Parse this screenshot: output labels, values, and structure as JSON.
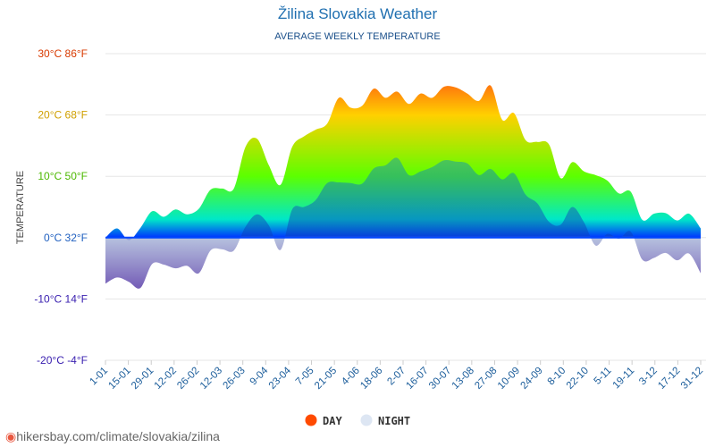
{
  "header": {
    "title": "Žilina Slovakia Weather",
    "subtitle": "AVERAGE WEEKLY TEMPERATURE"
  },
  "footer": {
    "source": "hikersbay.com/climate/slovakia/zilina"
  },
  "colors": {
    "day_legend": "#ff4a00",
    "night_legend": "#dde6f3",
    "gradient_hot": "#ff1a1a",
    "gradient_warm": "#ffd000",
    "gradient_mild": "#5cff00",
    "gradient_cool": "#00e8c8",
    "gradient_zero": "#0033ff",
    "gradient_cold": "#7030a0"
  },
  "chart_data": {
    "type": "area",
    "title": "Žilina Slovakia Weather",
    "subtitle": "AVERAGE WEEKLY TEMPERATURE",
    "ylabel": "TEMPERATURE",
    "ylim": [
      -20,
      30
    ],
    "y_ticks": [
      {
        "value": 30,
        "label": "30°C 86°F",
        "color": "#d83a00"
      },
      {
        "value": 20,
        "label": "20°C 68°F",
        "color": "#d0a000"
      },
      {
        "value": 10,
        "label": "10°C 50°F",
        "color": "#4cb800"
      },
      {
        "value": 0,
        "label": "0°C 32°F",
        "color": "#2060c0"
      },
      {
        "value": -10,
        "label": "-10°C 14°F",
        "color": "#3a20b0"
      },
      {
        "value": -20,
        "label": "-20°C -4°F",
        "color": "#3a20b0"
      }
    ],
    "x_ticks": [
      "1-01",
      "15-01",
      "29-01",
      "12-02",
      "26-02",
      "12-03",
      "26-03",
      "9-04",
      "23-04",
      "7-05",
      "21-05",
      "4-06",
      "18-06",
      "2-07",
      "16-07",
      "30-07",
      "13-08",
      "27-08",
      "10-09",
      "24-09",
      "8-10",
      "22-10",
      "5-11",
      "19-11",
      "3-12",
      "17-12",
      "31-12"
    ],
    "grid": true,
    "legend_placement": "bottom",
    "series": [
      {
        "name": "DAY",
        "values": [
          0,
          1.5,
          -0.4,
          1.6,
          4.3,
          3.4,
          4.6,
          3.8,
          4.7,
          7.8,
          8.0,
          8.0,
          14.8,
          16.1,
          11.8,
          8.6,
          14.8,
          16.5,
          17.6,
          18.6,
          22.8,
          21.2,
          21.5,
          24.3,
          22.8,
          23.8,
          21.8,
          23.5,
          22.8,
          24.6,
          24.5,
          23.5,
          22.3,
          24.8,
          19.2,
          20.3,
          15.9,
          15.6,
          15.2,
          9.7,
          12.3,
          10.8,
          10.2,
          9.3,
          7.2,
          7.5,
          2.9,
          3.9,
          4.0,
          2.8,
          3.9,
          1.5
        ]
      },
      {
        "name": "NIGHT",
        "values": [
          -7.5,
          -6.5,
          -7.2,
          -8.2,
          -4.3,
          -4.4,
          -5.0,
          -4.6,
          -5.8,
          -2.1,
          -1.9,
          -2.1,
          1.8,
          3.8,
          2.0,
          -2.0,
          4.6,
          5.0,
          6.1,
          8.9,
          9.0,
          8.9,
          8.8,
          11.3,
          11.8,
          13.0,
          10.2,
          10.8,
          11.5,
          12.6,
          12.4,
          12.1,
          10.2,
          11.2,
          9.5,
          10.5,
          7.0,
          5.6,
          2.6,
          2.1,
          5.0,
          2.5,
          -1.3,
          0.6,
          -0.2,
          1.0,
          -3.6,
          -3.3,
          -2.5,
          -3.7,
          -2.6,
          -5.8
        ]
      }
    ]
  }
}
